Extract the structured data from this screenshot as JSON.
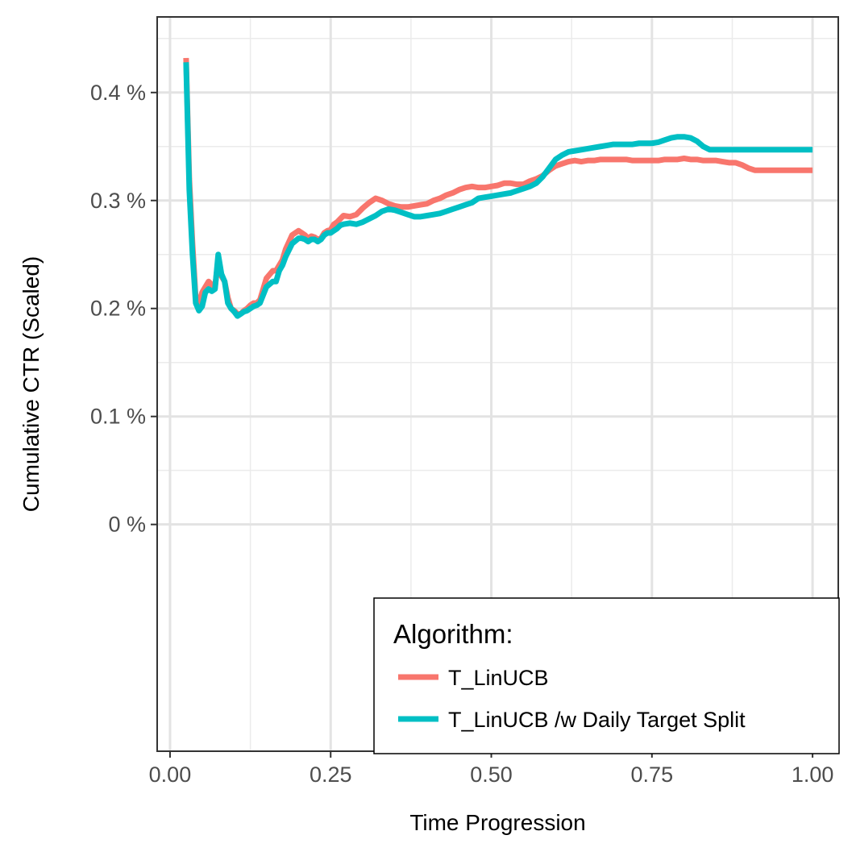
{
  "chart_data": {
    "type": "line",
    "xlabel": "Time Progression",
    "ylabel": "Cumulative CTR (Scaled)",
    "xlim": [
      -0.02,
      1.04
    ],
    "ylim": [
      -0.0021,
      0.0047
    ],
    "x_ticks": [
      0.0,
      0.25,
      0.5,
      0.75,
      1.0
    ],
    "x_tick_labels": [
      "0.00",
      "0.25",
      "0.50",
      "0.75",
      "1.00"
    ],
    "y_ticks": [
      0.0,
      0.001,
      0.002,
      0.003,
      0.004
    ],
    "y_tick_labels": [
      "0 %",
      "0.1 %",
      "0.2 %",
      "0.3 %",
      "0.4 %"
    ],
    "grid": true,
    "legend": {
      "title": "Algorithm:",
      "position": "bottom-right"
    },
    "series": [
      {
        "name": "T_LinUCB",
        "color": "#F8766D",
        "x": [
          0.025,
          0.03,
          0.035,
          0.04,
          0.045,
          0.05,
          0.055,
          0.06,
          0.065,
          0.07,
          0.075,
          0.08,
          0.085,
          0.09,
          0.095,
          0.1,
          0.105,
          0.11,
          0.115,
          0.12,
          0.125,
          0.13,
          0.135,
          0.14,
          0.15,
          0.16,
          0.165,
          0.17,
          0.175,
          0.18,
          0.19,
          0.2,
          0.205,
          0.21,
          0.215,
          0.22,
          0.225,
          0.23,
          0.235,
          0.24,
          0.245,
          0.25,
          0.255,
          0.26,
          0.265,
          0.27,
          0.28,
          0.29,
          0.3,
          0.31,
          0.32,
          0.33,
          0.34,
          0.35,
          0.36,
          0.37,
          0.38,
          0.39,
          0.4,
          0.41,
          0.42,
          0.43,
          0.44,
          0.45,
          0.46,
          0.47,
          0.48,
          0.49,
          0.5,
          0.51,
          0.52,
          0.53,
          0.54,
          0.55,
          0.56,
          0.57,
          0.58,
          0.59,
          0.6,
          0.61,
          0.62,
          0.63,
          0.64,
          0.65,
          0.66,
          0.67,
          0.68,
          0.69,
          0.7,
          0.71,
          0.72,
          0.73,
          0.74,
          0.75,
          0.76,
          0.77,
          0.78,
          0.79,
          0.8,
          0.81,
          0.82,
          0.83,
          0.84,
          0.85,
          0.86,
          0.87,
          0.88,
          0.89,
          0.9,
          0.91,
          0.92,
          0.93,
          0.94,
          0.95,
          0.96,
          0.97,
          0.98,
          0.99,
          1.0
        ],
        "y": [
          0.00432,
          0.0032,
          0.0026,
          0.0021,
          0.00205,
          0.00215,
          0.0022,
          0.00225,
          0.00222,
          0.0022,
          0.00245,
          0.0023,
          0.00225,
          0.0021,
          0.002,
          0.00198,
          0.00195,
          0.00195,
          0.00198,
          0.002,
          0.00203,
          0.00205,
          0.00205,
          0.00208,
          0.00228,
          0.00235,
          0.00235,
          0.0024,
          0.00245,
          0.00255,
          0.00268,
          0.00272,
          0.0027,
          0.00268,
          0.00265,
          0.00267,
          0.00266,
          0.00264,
          0.00265,
          0.0027,
          0.00272,
          0.00273,
          0.00278,
          0.0028,
          0.00283,
          0.00286,
          0.00285,
          0.00287,
          0.00293,
          0.00298,
          0.00302,
          0.003,
          0.00297,
          0.00295,
          0.00294,
          0.00294,
          0.00295,
          0.00296,
          0.00297,
          0.003,
          0.00302,
          0.00305,
          0.00307,
          0.0031,
          0.00312,
          0.00313,
          0.00312,
          0.00312,
          0.00313,
          0.00314,
          0.00316,
          0.00316,
          0.00315,
          0.00315,
          0.00318,
          0.0032,
          0.00323,
          0.00328,
          0.00332,
          0.00334,
          0.00336,
          0.00337,
          0.00336,
          0.00337,
          0.00337,
          0.00338,
          0.00338,
          0.00338,
          0.00338,
          0.00338,
          0.00337,
          0.00337,
          0.00337,
          0.00337,
          0.00337,
          0.00338,
          0.00338,
          0.00338,
          0.00339,
          0.00338,
          0.00338,
          0.00337,
          0.00337,
          0.00337,
          0.00336,
          0.00335,
          0.00335,
          0.00333,
          0.0033,
          0.00328,
          0.00328,
          0.00328,
          0.00328,
          0.00328,
          0.00328,
          0.00328,
          0.00328,
          0.00328,
          0.00328
        ]
      },
      {
        "name": "T_LinUCB /w Daily Target Split",
        "color": "#00BFC4",
        "x": [
          0.025,
          0.03,
          0.035,
          0.04,
          0.045,
          0.05,
          0.055,
          0.06,
          0.065,
          0.07,
          0.075,
          0.08,
          0.085,
          0.09,
          0.095,
          0.1,
          0.105,
          0.11,
          0.115,
          0.12,
          0.125,
          0.13,
          0.135,
          0.14,
          0.15,
          0.16,
          0.165,
          0.17,
          0.175,
          0.18,
          0.19,
          0.2,
          0.205,
          0.21,
          0.215,
          0.22,
          0.225,
          0.23,
          0.235,
          0.24,
          0.245,
          0.25,
          0.255,
          0.26,
          0.265,
          0.27,
          0.28,
          0.29,
          0.3,
          0.31,
          0.32,
          0.33,
          0.34,
          0.35,
          0.36,
          0.37,
          0.38,
          0.39,
          0.4,
          0.41,
          0.42,
          0.43,
          0.44,
          0.45,
          0.46,
          0.47,
          0.48,
          0.49,
          0.5,
          0.51,
          0.52,
          0.53,
          0.54,
          0.55,
          0.56,
          0.57,
          0.58,
          0.59,
          0.6,
          0.61,
          0.62,
          0.63,
          0.64,
          0.65,
          0.66,
          0.67,
          0.68,
          0.69,
          0.7,
          0.71,
          0.72,
          0.73,
          0.74,
          0.75,
          0.76,
          0.77,
          0.78,
          0.79,
          0.8,
          0.81,
          0.82,
          0.83,
          0.84,
          0.85,
          0.86,
          0.87,
          0.88,
          0.89,
          0.9,
          0.91,
          0.92,
          0.93,
          0.94,
          0.95,
          0.96,
          0.97,
          0.98,
          0.99,
          1.0
        ],
        "y": [
          0.00428,
          0.0031,
          0.0025,
          0.00205,
          0.00198,
          0.00202,
          0.00215,
          0.00218,
          0.00216,
          0.00218,
          0.0025,
          0.00232,
          0.00225,
          0.00205,
          0.002,
          0.00197,
          0.00193,
          0.00195,
          0.00197,
          0.00198,
          0.002,
          0.00202,
          0.00203,
          0.00205,
          0.0022,
          0.00225,
          0.00225,
          0.00235,
          0.0024,
          0.00248,
          0.0026,
          0.00265,
          0.00265,
          0.00264,
          0.00262,
          0.00264,
          0.00264,
          0.00262,
          0.00264,
          0.00268,
          0.0027,
          0.0027,
          0.00272,
          0.00274,
          0.00277,
          0.00278,
          0.00279,
          0.00278,
          0.0028,
          0.00283,
          0.00286,
          0.0029,
          0.00292,
          0.00291,
          0.00289,
          0.00287,
          0.00285,
          0.00285,
          0.00286,
          0.00287,
          0.00288,
          0.0029,
          0.00292,
          0.00294,
          0.00296,
          0.00298,
          0.00302,
          0.00303,
          0.00304,
          0.00305,
          0.00306,
          0.00307,
          0.00309,
          0.00311,
          0.00313,
          0.00316,
          0.00322,
          0.0033,
          0.00338,
          0.00342,
          0.00345,
          0.00346,
          0.00347,
          0.00348,
          0.00349,
          0.0035,
          0.00351,
          0.00352,
          0.00352,
          0.00352,
          0.00352,
          0.00353,
          0.00353,
          0.00353,
          0.00354,
          0.00356,
          0.00358,
          0.00359,
          0.00359,
          0.00358,
          0.00355,
          0.0035,
          0.00347,
          0.00347,
          0.00347,
          0.00347,
          0.00347,
          0.00347,
          0.00347,
          0.00347,
          0.00347,
          0.00347,
          0.00347,
          0.00347,
          0.00347,
          0.00347,
          0.00347,
          0.00347,
          0.00347
        ]
      }
    ]
  }
}
